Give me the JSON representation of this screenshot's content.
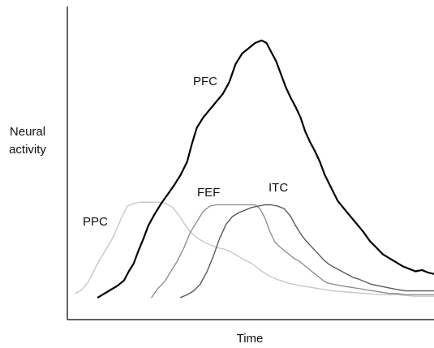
{
  "chart_data": {
    "type": "line",
    "xlabel": "Time",
    "ylabel": [
      "Neural",
      "activity"
    ],
    "grid": false,
    "legend": "none",
    "series": [
      {
        "name": "PPC",
        "color": "#c4c4c4",
        "x": [
          92,
          100,
          108,
          116,
          124,
          132,
          140,
          148,
          156,
          164,
          172,
          180,
          188,
          196,
          204,
          212,
          220,
          228,
          236,
          244,
          252,
          260,
          268,
          276,
          284,
          292,
          300,
          310,
          320,
          330,
          340,
          355,
          370,
          390,
          410,
          430,
          450,
          470,
          490,
          510,
          535
        ],
        "y": [
          0.05,
          0.08,
          0.14,
          0.24,
          0.33,
          0.41,
          0.5,
          0.62,
          0.72,
          0.74,
          0.75,
          0.75,
          0.75,
          0.75,
          0.74,
          0.71,
          0.65,
          0.57,
          0.51,
          0.47,
          0.44,
          0.42,
          0.4,
          0.39,
          0.37,
          0.34,
          0.31,
          0.28,
          0.23,
          0.19,
          0.16,
          0.13,
          0.11,
          0.09,
          0.07,
          0.06,
          0.05,
          0.04,
          0.04,
          0.03,
          0.03
        ]
      },
      {
        "name": "PFC",
        "color": "#000000",
        "x": [
          120,
          128,
          136,
          144,
          152,
          158,
          164,
          170,
          176,
          182,
          190,
          198,
          206,
          214,
          222,
          230,
          236,
          242,
          250,
          258,
          266,
          274,
          282,
          290,
          298,
          306,
          314,
          322,
          328,
          334,
          340,
          346,
          352,
          358,
          364,
          370,
          376,
          382,
          388,
          394,
          400,
          408,
          416,
          424,
          432,
          440,
          448,
          456,
          464,
          472,
          480,
          488,
          496,
          504,
          512,
          520,
          528,
          535
        ],
        "y": [
          0.02,
          0.05,
          0.08,
          0.11,
          0.15,
          0.22,
          0.28,
          0.38,
          0.47,
          0.57,
          0.66,
          0.74,
          0.81,
          0.88,
          0.96,
          1.06,
          1.2,
          1.32,
          1.4,
          1.46,
          1.52,
          1.58,
          1.67,
          1.81,
          1.89,
          1.93,
          1.97,
          1.99,
          1.97,
          1.9,
          1.83,
          1.73,
          1.63,
          1.55,
          1.48,
          1.4,
          1.29,
          1.21,
          1.14,
          1.06,
          0.96,
          0.86,
          0.76,
          0.7,
          0.64,
          0.58,
          0.52,
          0.45,
          0.4,
          0.35,
          0.32,
          0.29,
          0.26,
          0.24,
          0.22,
          0.23,
          0.21,
          0.2
        ]
      },
      {
        "name": "FEF",
        "color": "#8a8a8a",
        "x": [
          186,
          194,
          202,
          210,
          218,
          226,
          234,
          242,
          250,
          258,
          266,
          274,
          282,
          290,
          298,
          306,
          314,
          320,
          326,
          332,
          338,
          344,
          350,
          356,
          362,
          368,
          374,
          380,
          386,
          392,
          398,
          404,
          412,
          420,
          430,
          440,
          450,
          460,
          470,
          480,
          490,
          500,
          510,
          520,
          535
        ],
        "y": [
          0.02,
          0.09,
          0.14,
          0.22,
          0.3,
          0.4,
          0.52,
          0.6,
          0.68,
          0.72,
          0.73,
          0.73,
          0.73,
          0.73,
          0.73,
          0.73,
          0.73,
          0.7,
          0.63,
          0.53,
          0.45,
          0.41,
          0.38,
          0.35,
          0.32,
          0.3,
          0.27,
          0.24,
          0.21,
          0.18,
          0.15,
          0.13,
          0.12,
          0.11,
          0.1,
          0.09,
          0.08,
          0.07,
          0.06,
          0.05,
          0.05,
          0.04,
          0.04,
          0.04,
          0.04
        ]
      },
      {
        "name": "ITC",
        "color": "#5a5a5a",
        "x": [
          222,
          230,
          238,
          246,
          254,
          262,
          270,
          278,
          286,
          294,
          302,
          310,
          318,
          326,
          334,
          342,
          350,
          358,
          364,
          370,
          376,
          382,
          388,
          394,
          400,
          406,
          412,
          418,
          424,
          430,
          436,
          442,
          450,
          458,
          466,
          474,
          482,
          490,
          500,
          510,
          520,
          535
        ],
        "y": [
          0.02,
          0.04,
          0.07,
          0.12,
          0.21,
          0.33,
          0.47,
          0.58,
          0.64,
          0.67,
          0.69,
          0.71,
          0.72,
          0.73,
          0.73,
          0.72,
          0.7,
          0.64,
          0.57,
          0.51,
          0.46,
          0.42,
          0.38,
          0.34,
          0.3,
          0.27,
          0.25,
          0.23,
          0.21,
          0.19,
          0.17,
          0.16,
          0.14,
          0.12,
          0.11,
          0.1,
          0.09,
          0.08,
          0.07,
          0.07,
          0.07,
          0.07
        ]
      }
    ],
    "annotations": [
      {
        "text": "PFC",
        "series": "PFC"
      },
      {
        "text": "FEF",
        "series": "FEF"
      },
      {
        "text": "ITC",
        "series": "ITC"
      },
      {
        "text": "PPC",
        "series": "PPC"
      }
    ],
    "xlim": [
      82,
      535
    ],
    "ylim": [
      -0.15,
      2.25
    ]
  },
  "style": {
    "axis_color": "#000000",
    "text_color": "#111111"
  }
}
